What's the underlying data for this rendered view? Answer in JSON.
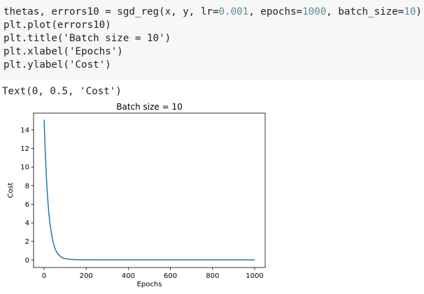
{
  "code_cell": {
    "lines": [
      {
        "segments": [
          {
            "text": "thetas, errors10 = sgd_reg(x, y, lr=",
            "num": false
          },
          {
            "text": "0.001",
            "num": true
          },
          {
            "text": ", epochs=",
            "num": false
          },
          {
            "text": "1000",
            "num": true
          },
          {
            "text": ", batch_size=",
            "num": false
          },
          {
            "text": "10",
            "num": true
          },
          {
            "text": ")",
            "num": false
          }
        ]
      },
      {
        "segments": [
          {
            "text": "plt.plot(errors10)",
            "num": false
          }
        ]
      },
      {
        "segments": [
          {
            "text": "plt.title('Batch size = 10')",
            "num": false
          }
        ]
      },
      {
        "segments": [
          {
            "text": "plt.xlabel('Epochs')",
            "num": false
          }
        ]
      },
      {
        "segments": [
          {
            "text": "plt.ylabel('Cost')",
            "num": false
          }
        ]
      }
    ]
  },
  "output": {
    "text": "Text(0, 0.5, 'Cost')"
  },
  "colors": {
    "line": "#1f77b4",
    "code_number": "#5a8a9c",
    "cell_background": "#f7f7f7"
  },
  "chart_data": {
    "type": "line",
    "title": "Batch size = 10",
    "xlabel": "Epochs",
    "ylabel": "Cost",
    "xlim": [
      -50,
      1050
    ],
    "ylim": [
      -0.8,
      15.8
    ],
    "xticks": [
      0,
      200,
      400,
      600,
      800,
      1000
    ],
    "yticks": [
      0,
      2,
      4,
      6,
      8,
      10,
      12,
      14
    ],
    "grid": false,
    "series": [
      {
        "x": [
          0,
          5,
          10,
          15,
          20,
          25,
          30,
          40,
          50,
          60,
          70,
          80,
          90,
          100,
          120,
          140,
          160,
          180,
          200,
          250,
          300,
          400,
          500,
          600,
          700,
          800,
          900,
          1000
        ],
        "y": [
          15.1,
          11.9,
          9.3,
          7.3,
          5.7,
          4.5,
          3.5,
          2.2,
          1.35,
          0.85,
          0.55,
          0.35,
          0.22,
          0.15,
          0.08,
          0.05,
          0.04,
          0.03,
          0.03,
          0.02,
          0.02,
          0.02,
          0.02,
          0.02,
          0.02,
          0.02,
          0.02,
          0.02
        ]
      }
    ]
  }
}
